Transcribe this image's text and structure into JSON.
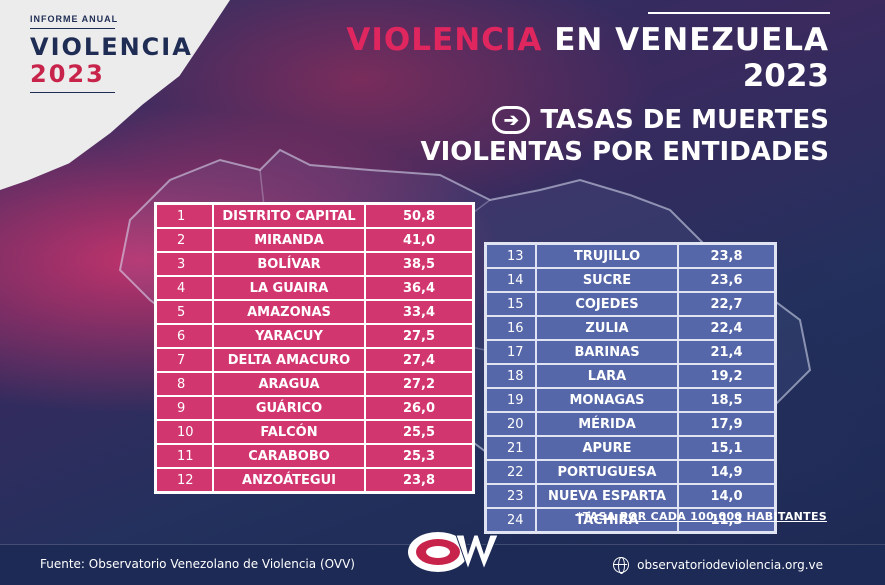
{
  "header": {
    "badge_label": "INFORME ANUAL",
    "badge_title": "VIOLENCIA",
    "badge_year": "2023",
    "title_accent": "VIOLENCIA",
    "title_rest": " EN VENEZUELA",
    "title_year": "2023",
    "subtitle_line1": "TASAS DE MUERTES",
    "subtitle_line2": "VIOLENTAS POR ENTIDADES",
    "arrow_icon": "arrow-right-circle-icon"
  },
  "colors": {
    "accent": "#e0265f",
    "table_pink": "#d2366f",
    "table_blue": "#5567a8",
    "background": "#1f2d55"
  },
  "table_left": [
    {
      "pos": "1",
      "name": "DISTRITO CAPITAL",
      "val": "50,8"
    },
    {
      "pos": "2",
      "name": "MIRANDA",
      "val": "41,0"
    },
    {
      "pos": "3",
      "name": "BOLÍVAR",
      "val": "38,5"
    },
    {
      "pos": "4",
      "name": "LA GUAIRA",
      "val": "36,4"
    },
    {
      "pos": "5",
      "name": "AMAZONAS",
      "val": "33,4"
    },
    {
      "pos": "6",
      "name": "YARACUY",
      "val": "27,5"
    },
    {
      "pos": "7",
      "name": "DELTA AMACURO",
      "val": "27,4"
    },
    {
      "pos": "8",
      "name": "ARAGUA",
      "val": "27,2"
    },
    {
      "pos": "9",
      "name": "GUÁRICO",
      "val": "26,0"
    },
    {
      "pos": "10",
      "name": "FALCÓN",
      "val": "25,5"
    },
    {
      "pos": "11",
      "name": "CARABOBO",
      "val": "25,3"
    },
    {
      "pos": "12",
      "name": "ANZOÁTEGUI",
      "val": "23,8"
    }
  ],
  "table_right": [
    {
      "pos": "13",
      "name": "TRUJILLO",
      "val": "23,8"
    },
    {
      "pos": "14",
      "name": "SUCRE",
      "val": "23,6"
    },
    {
      "pos": "15",
      "name": "COJEDES",
      "val": "22,7"
    },
    {
      "pos": "16",
      "name": "ZULIA",
      "val": "22,4"
    },
    {
      "pos": "17",
      "name": "BARINAS",
      "val": "21,4"
    },
    {
      "pos": "18",
      "name": "LARA",
      "val": "19,2"
    },
    {
      "pos": "19",
      "name": "MONAGAS",
      "val": "18,5"
    },
    {
      "pos": "20",
      "name": "MÉRIDA",
      "val": "17,9"
    },
    {
      "pos": "21",
      "name": "APURE",
      "val": "15,1"
    },
    {
      "pos": "22",
      "name": "PORTUGUESA",
      "val": "14,9"
    },
    {
      "pos": "23",
      "name": "NUEVA ESPARTA",
      "val": "14,0"
    },
    {
      "pos": "24",
      "name": "TÁCHIRA",
      "val": "11,3"
    }
  ],
  "note": {
    "prefix": "*TASA ",
    "underlined": "POR CADA 100.000 HABITANTES"
  },
  "footer": {
    "source": "Fuente: Observatorio Venezolano de Violencia (OVV)",
    "logo_text": "OVV",
    "website": "observatoriodeviolencia.org.ve",
    "globe_icon": "globe-icon"
  }
}
